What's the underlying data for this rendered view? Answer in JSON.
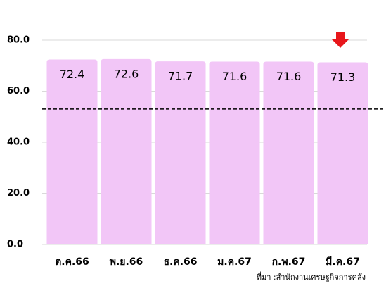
{
  "chart_data": {
    "type": "bar",
    "categories": [
      "ต.ค.66",
      "พ.ย.66",
      "ธ.ค.66",
      "ม.ค.67",
      "ก.พ.67",
      "มี.ค.67"
    ],
    "values": [
      72.4,
      72.6,
      71.7,
      71.6,
      71.6,
      71.3
    ],
    "color": "#f2c6f7",
    "ylim": [
      0,
      80
    ],
    "yticks": [
      {
        "value": 0,
        "label": "0.0"
      },
      {
        "value": 20,
        "label": "20.0"
      },
      {
        "value": 40,
        "label": "40.0"
      },
      {
        "value": 60,
        "label": "60.0"
      },
      {
        "value": 80,
        "label": "80.0"
      }
    ],
    "grid": true,
    "reference_line": 53,
    "source": "ที่มา :สำนักงานเศรษฐกิจการคลัง"
  }
}
